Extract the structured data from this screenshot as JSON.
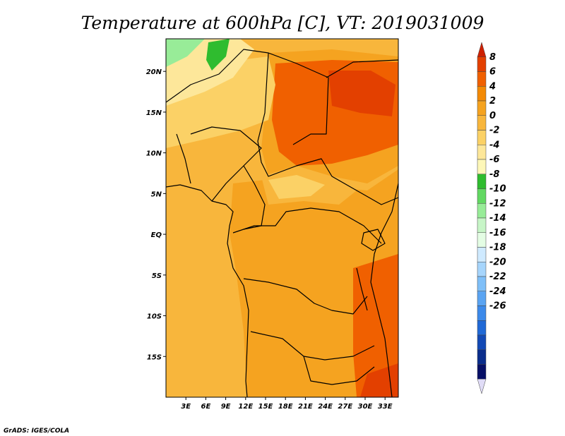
{
  "title": "Temperature at 600hPa [C], VT: 2019031009",
  "credit": "GrADS: IGES/COLA",
  "map": {
    "lon_range": [
      0,
      35
    ],
    "lat_range": [
      -20,
      24
    ],
    "lon_ticks": [
      {
        "value": 3,
        "label": "3E"
      },
      {
        "value": 6,
        "label": "6E"
      },
      {
        "value": 9,
        "label": "9E"
      },
      {
        "value": 12,
        "label": "12E"
      },
      {
        "value": 15,
        "label": "15E"
      },
      {
        "value": 18,
        "label": "18E"
      },
      {
        "value": 21,
        "label": "21E"
      },
      {
        "value": 24,
        "label": "24E"
      },
      {
        "value": 27,
        "label": "27E"
      },
      {
        "value": 30,
        "label": "30E"
      },
      {
        "value": 33,
        "label": "33E"
      }
    ],
    "lat_ticks": [
      {
        "value": 20,
        "label": "20N"
      },
      {
        "value": 15,
        "label": "15N"
      },
      {
        "value": 10,
        "label": "10N"
      },
      {
        "value": 5,
        "label": "5N"
      },
      {
        "value": 0,
        "label": "EQ"
      },
      {
        "value": -5,
        "label": "5S"
      },
      {
        "value": -10,
        "label": "10S"
      },
      {
        "value": -15,
        "label": "15S"
      }
    ]
  },
  "colorbar": {
    "levels": [
      "8",
      "6",
      "4",
      "2",
      "0",
      "-2",
      "-4",
      "-6",
      "-8",
      "-10",
      "-12",
      "-14",
      "-16",
      "-18",
      "-20",
      "-22",
      "-24",
      "-26"
    ],
    "colors": [
      "#cd2000",
      "#e34000",
      "#f06000",
      "#f38a05",
      "#f5a320",
      "#f8b63c",
      "#fbd166",
      "#fde79a",
      "#fdf7b8",
      "#2fbc2f",
      "#62d862",
      "#98ec98",
      "#c7f5c7",
      "#e4fde4",
      "#cfeaff",
      "#a6d5fc",
      "#7fbff8",
      "#5aa4f2",
      "#3c8aea",
      "#2069d6",
      "#1249b5",
      "#0a2d8c",
      "#060f66",
      "#e0dcf7"
    ]
  },
  "colors": {
    "ocean_fill": "#f8b63c",
    "land_base": "#f5a320",
    "warm": "#f06000",
    "warmest": "#e34000",
    "cool_yellow": "#fbd166",
    "pale_yellow": "#fde79a",
    "green": "#2fbc2f",
    "light_green": "#98ec98"
  }
}
